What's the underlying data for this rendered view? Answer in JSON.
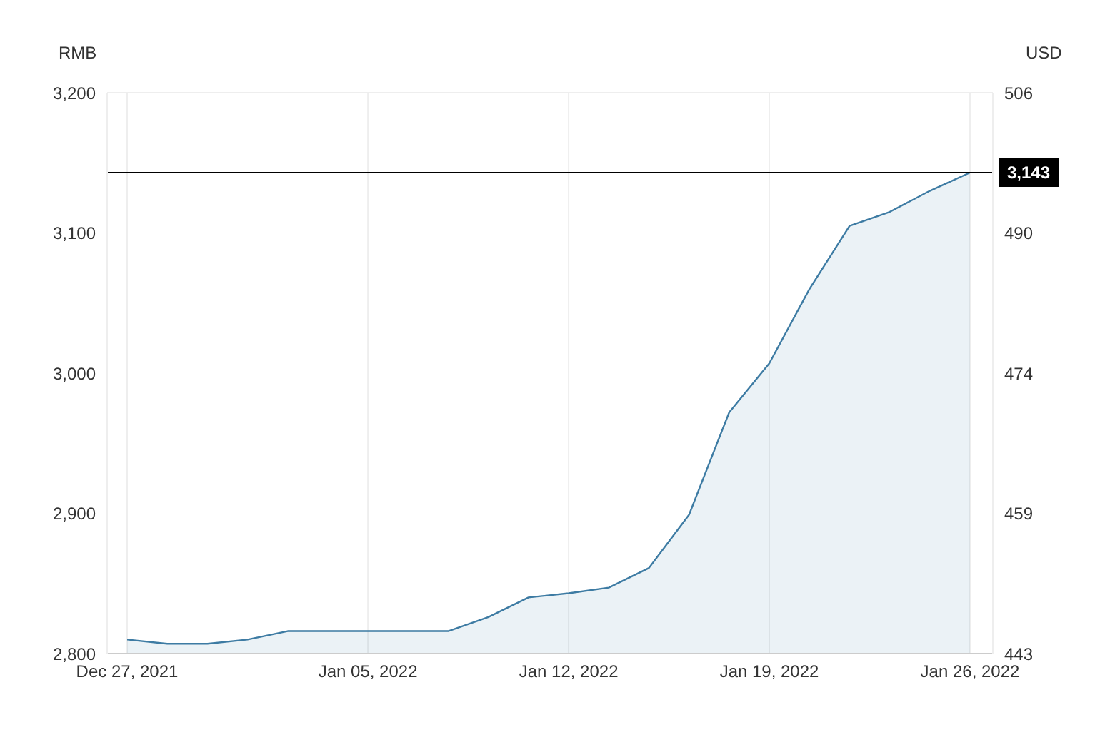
{
  "chart_data": {
    "type": "area",
    "ylabel": "RMB",
    "y2label": "USD",
    "categories": [
      "Dec 27, 2021",
      null,
      null,
      null,
      null,
      null,
      "Jan 05, 2022",
      null,
      null,
      null,
      null,
      "Jan 12, 2022",
      null,
      null,
      null,
      null,
      "Jan 19, 2022",
      null,
      null,
      null,
      null,
      "Jan 26, 2022"
    ],
    "series": [
      {
        "color": "#3d7ba3",
        "values": [
          2810,
          2807,
          2807,
          2810,
          2816,
          2816,
          2816,
          2816,
          2816,
          2826,
          2840,
          2843,
          2847,
          2861,
          2899,
          2972,
          3007,
          3060,
          3105,
          3115,
          3130,
          3143
        ]
      }
    ],
    "ylim": [
      2800,
      3200
    ],
    "yticks": [
      {
        "value": 2800,
        "label": "2,800"
      },
      {
        "value": 2900,
        "label": "2,900"
      },
      {
        "value": 3000,
        "label": "3,000"
      },
      {
        "value": 3100,
        "label": "3,100"
      },
      {
        "value": 3200,
        "label": "3,200"
      }
    ],
    "y2lim": [
      443,
      506
    ],
    "y2ticks": [
      443,
      {
        "value": 458.75,
        "label": "459"
      },
      {
        "value": 474.5,
        "label": "474"
      },
      {
        "value": 490.25,
        "label": "490"
      },
      506
    ],
    "ref_lines": [
      {
        "axis": "y",
        "value": 3143,
        "label": "3,143",
        "color": "#000000"
      }
    ],
    "grid": true
  }
}
